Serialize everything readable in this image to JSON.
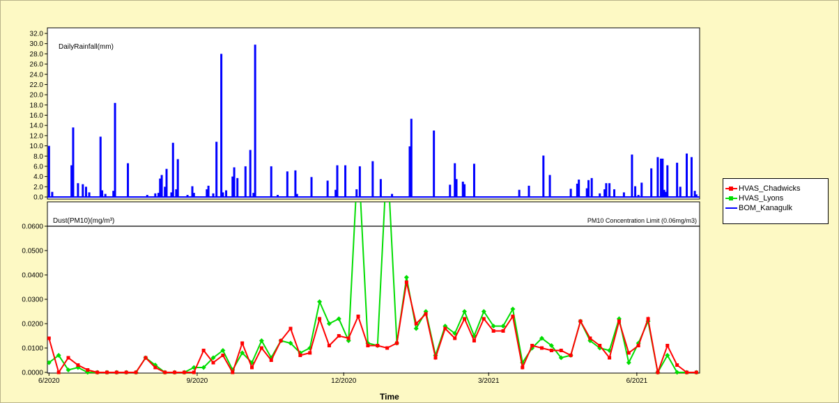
{
  "chart_data": [
    {
      "type": "bar",
      "title": "DailyRainfall(mm)",
      "ylim": [
        0,
        32
      ],
      "yticks": [
        "32.0",
        "30.0",
        "28.0",
        "26.0",
        "24.0",
        "22.0",
        "20.0",
        "18.0",
        "16.0",
        "14.0",
        "12.0",
        "10.0",
        "8.0",
        "6.0",
        "4.0",
        "2.0",
        "0.0"
      ],
      "series": [
        {
          "name": "BOM_Kanagulk",
          "color": "#0000ff",
          "x": [
            "2020-06-01",
            "2020-06-03",
            "2020-06-15",
            "2020-06-16",
            "2020-06-19",
            "2020-06-22",
            "2020-06-24",
            "2020-06-26",
            "2020-07-03",
            "2020-07-04",
            "2020-07-06",
            "2020-07-11",
            "2020-07-12",
            "2020-07-20",
            "2020-08-01",
            "2020-08-06",
            "2020-08-08",
            "2020-08-09",
            "2020-08-10",
            "2020-08-12",
            "2020-08-13",
            "2020-08-16",
            "2020-08-17",
            "2020-08-19",
            "2020-08-20",
            "2020-08-26",
            "2020-08-29",
            "2020-08-30",
            "2020-09-07",
            "2020-09-08",
            "2020-09-11",
            "2020-09-13",
            "2020-09-16",
            "2020-09-17",
            "2020-09-19",
            "2020-09-23",
            "2020-09-24",
            "2020-09-26",
            "2020-10-01",
            "2020-10-04",
            "2020-10-06",
            "2020-10-07",
            "2020-10-17",
            "2020-10-21",
            "2020-10-27",
            "2020-11-01",
            "2020-11-02",
            "2020-11-11",
            "2020-11-21",
            "2020-11-26",
            "2020-11-27",
            "2020-12-02",
            "2020-12-09",
            "2020-12-11",
            "2020-12-19",
            "2020-12-24",
            "2020-12-31",
            "2021-01-11",
            "2021-01-12",
            "2021-01-26",
            "2021-02-05",
            "2021-02-08",
            "2021-02-09",
            "2021-02-13",
            "2021-02-14",
            "2021-02-20",
            "2021-03-20",
            "2021-03-26",
            "2021-04-04",
            "2021-04-08",
            "2021-04-21",
            "2021-04-25",
            "2021-04-26",
            "2021-05-01",
            "2021-05-02",
            "2021-05-04",
            "2021-05-09",
            "2021-05-12",
            "2021-05-13",
            "2021-05-15",
            "2021-05-18",
            "2021-05-24",
            "2021-05-29",
            "2021-05-31",
            "2021-06-02",
            "2021-06-04",
            "2021-06-10",
            "2021-06-14",
            "2021-06-16",
            "2021-06-17",
            "2021-06-18",
            "2021-06-19",
            "2021-06-20",
            "2021-06-26",
            "2021-06-28",
            "2021-07-02",
            "2021-07-05",
            "2021-07-07",
            "2021-07-08"
          ],
          "values": [
            10.0,
            1.0,
            6.2,
            13.6,
            2.7,
            2.5,
            2.0,
            0.9,
            11.8,
            1.3,
            0.6,
            1.2,
            18.4,
            6.6,
            0.4,
            0.7,
            0.8,
            3.6,
            4.3,
            2.0,
            5.5,
            0.9,
            10.6,
            1.5,
            7.4,
            0.4,
            2.1,
            0.8,
            1.5,
            2.2,
            0.7,
            10.8,
            28.0,
            0.9,
            1.3,
            4.0,
            5.8,
            3.7,
            6.0,
            9.2,
            0.8,
            29.8,
            6.0,
            0.4,
            5.0,
            5.2,
            0.6,
            3.9,
            3.2,
            1.4,
            6.2,
            6.2,
            1.5,
            6.0,
            7.0,
            3.5,
            0.6,
            9.9,
            15.3,
            13.0,
            2.4,
            6.6,
            3.5,
            3.0,
            2.5,
            6.5,
            1.4,
            2.2,
            8.1,
            4.3,
            1.6,
            2.6,
            3.4,
            1.7,
            3.3,
            3.7,
            0.7,
            1.5,
            2.7,
            2.7,
            1.5,
            0.9,
            8.3,
            2.1,
            0.4,
            2.8,
            5.6,
            7.8,
            7.5,
            7.5,
            1.4,
            1.0,
            6.2,
            6.7,
            2.0,
            8.5,
            7.8,
            1.2,
            0.5
          ]
        }
      ]
    },
    {
      "type": "line",
      "title": "Dust(PM10)(mg/m³)",
      "xlabel": "Time",
      "ylim": [
        0,
        0.07
      ],
      "yticks": [
        "0.0600",
        "0.0500",
        "0.0400",
        "0.0300",
        "0.0200",
        "0.0100",
        "0.0000"
      ],
      "xticks": [
        {
          "date": "2020-06-01",
          "label": "6/2020"
        },
        {
          "date": "2020-09-01",
          "label": "9/2020"
        },
        {
          "date": "2020-12-01",
          "label": "12/2020"
        },
        {
          "date": "2021-03-01",
          "label": "3/2021"
        },
        {
          "date": "2021-06-01",
          "label": "6/2021"
        }
      ],
      "limit": {
        "value": 0.06,
        "label": "PM10 Concentration Limit (0.06mg/m3)"
      },
      "series": [
        {
          "name": "HVAS_Chadwicks",
          "color": "#ff0000",
          "x": [
            "2020-06-01",
            "2020-06-07",
            "2020-06-13",
            "2020-06-19",
            "2020-06-25",
            "2020-07-01",
            "2020-07-07",
            "2020-07-13",
            "2020-07-19",
            "2020-07-25",
            "2020-07-31",
            "2020-08-06",
            "2020-08-12",
            "2020-08-18",
            "2020-08-24",
            "2020-08-30",
            "2020-09-05",
            "2020-09-11",
            "2020-09-17",
            "2020-09-23",
            "2020-09-29",
            "2020-10-05",
            "2020-10-11",
            "2020-10-17",
            "2020-10-23",
            "2020-10-29",
            "2020-11-04",
            "2020-11-10",
            "2020-11-16",
            "2020-11-22",
            "2020-11-28",
            "2020-12-04",
            "2020-12-10",
            "2020-12-16",
            "2020-12-22",
            "2020-12-28",
            "2021-01-03",
            "2021-01-09",
            "2021-01-15",
            "2021-01-21",
            "2021-01-27",
            "2021-02-02",
            "2021-02-08",
            "2021-02-14",
            "2021-02-20",
            "2021-02-26",
            "2021-03-04",
            "2021-03-10",
            "2021-03-16",
            "2021-03-22",
            "2021-03-28",
            "2021-04-03",
            "2021-04-09",
            "2021-04-15",
            "2021-04-21",
            "2021-04-27",
            "2021-05-03",
            "2021-05-09",
            "2021-05-15",
            "2021-05-21",
            "2021-05-27",
            "2021-06-02",
            "2021-06-08",
            "2021-06-14",
            "2021-06-20",
            "2021-06-26",
            "2021-07-02",
            "2021-07-08"
          ],
          "values": [
            0.014,
            0.0,
            0.006,
            0.003,
            0.001,
            0.0,
            0.0,
            0.0,
            0.0,
            0.0,
            0.006,
            0.002,
            0.0,
            0.0,
            0.0,
            0.0,
            0.009,
            0.004,
            0.007,
            0.0,
            0.012,
            0.002,
            0.01,
            0.005,
            0.013,
            0.018,
            0.007,
            0.008,
            0.022,
            0.011,
            0.015,
            0.014,
            0.023,
            0.011,
            0.011,
            0.01,
            0.012,
            0.037,
            0.02,
            0.024,
            0.006,
            0.018,
            0.014,
            0.022,
            0.013,
            0.022,
            0.017,
            0.017,
            0.023,
            0.002,
            0.011,
            0.01,
            0.009,
            0.009,
            0.007,
            0.021,
            0.014,
            0.011,
            0.006,
            0.021,
            0.008,
            0.011,
            0.022,
            0.0,
            0.011,
            0.003,
            0.0,
            0.0
          ]
        },
        {
          "name": "HVAS_Lyons",
          "color": "#00dd00",
          "x": [
            "2020-06-01",
            "2020-06-07",
            "2020-06-13",
            "2020-06-19",
            "2020-06-25",
            "2020-07-01",
            "2020-07-07",
            "2020-07-13",
            "2020-07-19",
            "2020-07-25",
            "2020-07-31",
            "2020-08-06",
            "2020-08-12",
            "2020-08-18",
            "2020-08-24",
            "2020-08-30",
            "2020-09-05",
            "2020-09-11",
            "2020-09-17",
            "2020-09-23",
            "2020-09-29",
            "2020-10-05",
            "2020-10-11",
            "2020-10-17",
            "2020-10-23",
            "2020-10-29",
            "2020-11-04",
            "2020-11-10",
            "2020-11-16",
            "2020-11-22",
            "2020-11-28",
            "2020-12-04",
            "2020-12-10",
            "2020-12-16",
            "2020-12-22",
            "2020-12-28",
            "2021-01-03",
            "2021-01-09",
            "2021-01-15",
            "2021-01-21",
            "2021-01-27",
            "2021-02-02",
            "2021-02-08",
            "2021-02-14",
            "2021-02-20",
            "2021-02-26",
            "2021-03-04",
            "2021-03-10",
            "2021-03-16",
            "2021-03-22",
            "2021-03-28",
            "2021-04-03",
            "2021-04-09",
            "2021-04-15",
            "2021-04-21",
            "2021-04-27",
            "2021-05-03",
            "2021-05-09",
            "2021-05-15",
            "2021-05-21",
            "2021-05-27",
            "2021-06-02",
            "2021-06-08",
            "2021-06-14",
            "2021-06-20",
            "2021-06-26",
            "2021-07-02",
            "2021-07-08"
          ],
          "values": [
            0.004,
            0.007,
            0.001,
            0.002,
            0.0,
            0.0,
            0.0,
            0.0,
            0.0,
            0.0,
            0.006,
            0.003,
            0.0,
            0.0,
            0.0,
            0.002,
            0.002,
            0.006,
            0.009,
            0.001,
            0.008,
            0.004,
            0.013,
            0.006,
            0.013,
            0.012,
            0.008,
            0.01,
            0.029,
            0.02,
            0.022,
            0.013,
            0.09,
            0.012,
            0.011,
            0.09,
            0.012,
            0.039,
            0.018,
            0.025,
            0.007,
            0.019,
            0.016,
            0.025,
            0.015,
            0.025,
            0.019,
            0.019,
            0.026,
            0.004,
            0.01,
            0.014,
            0.011,
            0.006,
            0.007,
            0.021,
            0.013,
            0.01,
            0.009,
            0.022,
            0.004,
            0.012,
            0.021,
            0.0,
            0.007,
            0.0,
            0.0,
            0.0
          ]
        }
      ]
    }
  ],
  "legend": {
    "items": [
      {
        "label": "HVAS_Chadwicks",
        "color": "#ff0000"
      },
      {
        "label": "HVAS_Lyons",
        "color": "#00dd00"
      },
      {
        "label": "BOM_Kanagulk",
        "color": "#0000ff"
      }
    ]
  }
}
